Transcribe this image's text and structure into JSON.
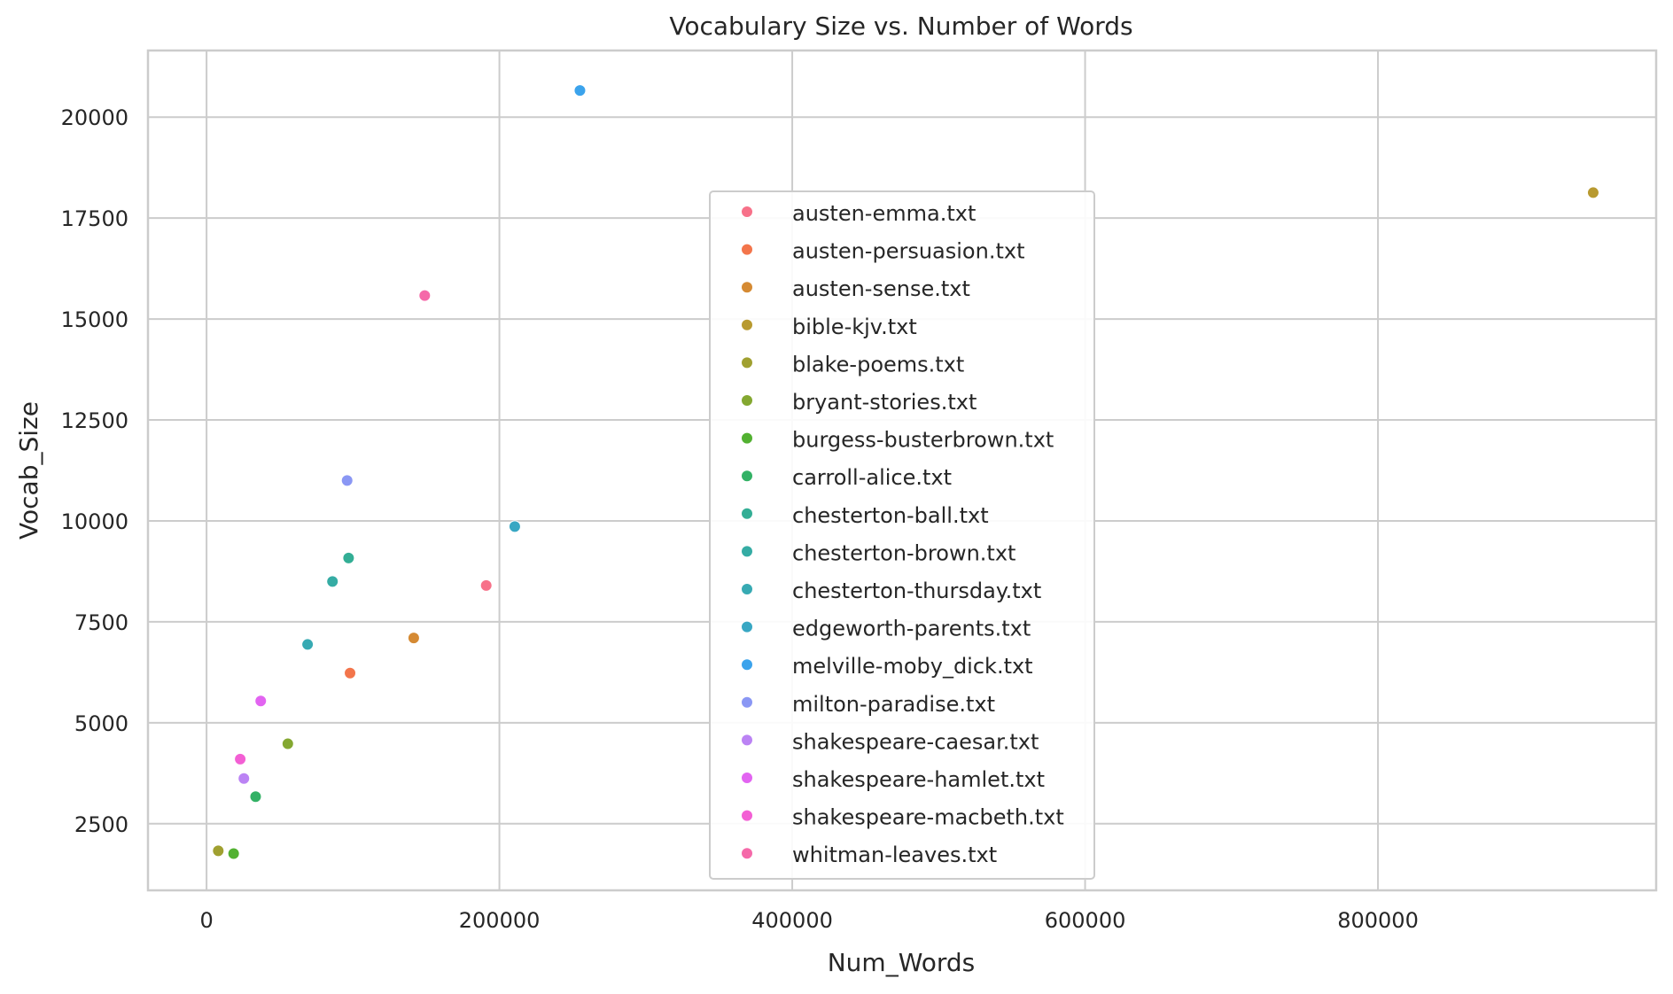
{
  "chart_data": {
    "type": "scatter",
    "title": "Vocabulary Size vs. Number of Words",
    "xlabel": "Num_Words",
    "ylabel": "Vocab_Size",
    "xlim": [
      -40000,
      990000
    ],
    "ylim": [
      850,
      21650
    ],
    "xticks": [
      0,
      200000,
      400000,
      600000,
      800000
    ],
    "xtick_labels": [
      "0",
      "200000",
      "400000",
      "600000",
      "800000"
    ],
    "yticks": [
      2500,
      5000,
      7500,
      10000,
      12500,
      15000,
      17500,
      20000
    ],
    "ytick_labels": [
      "2500",
      "5000",
      "7500",
      "10000",
      "12500",
      "15000",
      "17500",
      "20000"
    ],
    "grid": true,
    "legend_position": "center",
    "series": [
      {
        "name": "austen-emma.txt",
        "color": "#f77189",
        "x": 191000,
        "y": 8400
      },
      {
        "name": "austen-persuasion.txt",
        "color": "#f3754b",
        "x": 98000,
        "y": 6230
      },
      {
        "name": "austen-sense.txt",
        "color": "#d58a33",
        "x": 141500,
        "y": 7100
      },
      {
        "name": "bible-kjv.txt",
        "color": "#b89a30",
        "x": 947000,
        "y": 18130
      },
      {
        "name": "blake-poems.txt",
        "color": "#a0a030",
        "x": 8000,
        "y": 1830
      },
      {
        "name": "bryant-stories.txt",
        "color": "#84a831",
        "x": 55500,
        "y": 4480
      },
      {
        "name": "burgess-busterbrown.txt",
        "color": "#52b131",
        "x": 18500,
        "y": 1760
      },
      {
        "name": "carroll-alice.txt",
        "color": "#32b165",
        "x": 33500,
        "y": 3170
      },
      {
        "name": "chesterton-ball.txt",
        "color": "#33ae95",
        "x": 97000,
        "y": 9080
      },
      {
        "name": "chesterton-brown.txt",
        "color": "#35aca4",
        "x": 86000,
        "y": 8500
      },
      {
        "name": "chesterton-thursday.txt",
        "color": "#37aab3",
        "x": 69000,
        "y": 6940
      },
      {
        "name": "edgeworth-parents.txt",
        "color": "#38a7c3",
        "x": 210500,
        "y": 9860
      },
      {
        "name": "melville-moby_dick.txt",
        "color": "#3ba3ec",
        "x": 255000,
        "y": 20660
      },
      {
        "name": "milton-paradise.txt",
        "color": "#8a97f4",
        "x": 96000,
        "y": 11000
      },
      {
        "name": "shakespeare-caesar.txt",
        "color": "#bb83f4",
        "x": 25500,
        "y": 3620
      },
      {
        "name": "shakespeare-hamlet.txt",
        "color": "#e264f1",
        "x": 37000,
        "y": 5540
      },
      {
        "name": "shakespeare-macbeth.txt",
        "color": "#f35fd4",
        "x": 23000,
        "y": 4100
      },
      {
        "name": "whitman-leaves.txt",
        "color": "#f569a9",
        "x": 149000,
        "y": 15580
      }
    ]
  }
}
